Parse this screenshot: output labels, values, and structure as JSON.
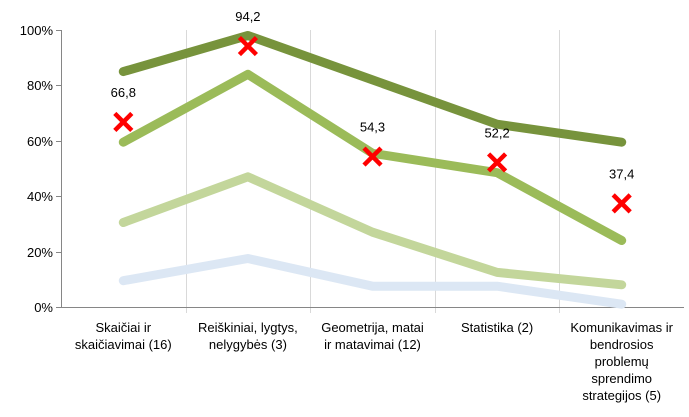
{
  "chart_data": {
    "type": "line",
    "categories": [
      [
        "Skaičiai ir",
        "skaičiavimai (16)"
      ],
      [
        "Reiškiniai, lygtys,",
        "nelygybės (3)"
      ],
      [
        "Geometrija, matai",
        "ir matavimai (12)"
      ],
      [
        "Statistika (2)"
      ],
      [
        "Komunikavimas ir",
        "bendrosios",
        "problemų",
        "sprendimo",
        "strategijos (5)"
      ]
    ],
    "ylim": [
      0,
      100
    ],
    "yticks": [
      0,
      20,
      40,
      60,
      80,
      100
    ],
    "ytick_labels": [
      "0%",
      "20%",
      "40%",
      "60%",
      "80%",
      "100%"
    ],
    "grid": "vertical category separators",
    "legend": "none",
    "series": [
      {
        "color": "#dce7f4",
        "values": [
          9.5,
          17.5,
          7.5,
          7.5,
          1
        ]
      },
      {
        "color": "#c3d69b",
        "values": [
          30.5,
          47,
          27,
          12.5,
          8
        ]
      },
      {
        "color": "#9bbb59",
        "values": [
          59.5,
          84,
          55.5,
          48.5,
          24
        ]
      },
      {
        "color": "#77933c",
        "values": [
          85,
          98,
          82,
          66,
          59.5
        ]
      }
    ],
    "markers": {
      "symbol": "x",
      "color": "#ff0000",
      "values": [
        66.8,
        94.2,
        54.3,
        52.2,
        37.4
      ],
      "labels": [
        "66,8",
        "94,2",
        "54,3",
        "52,2",
        "37,4"
      ]
    }
  }
}
